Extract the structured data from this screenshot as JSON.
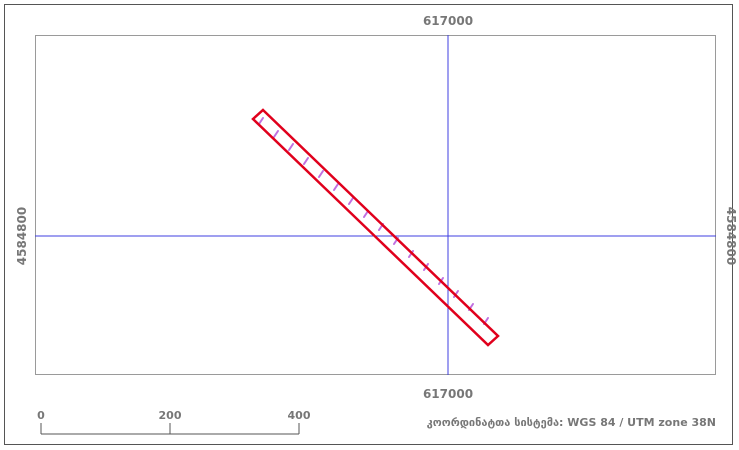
{
  "map": {
    "grid_easting_label": "617000",
    "grid_northing_label": "4584800",
    "grid_color": "#3f3fe0",
    "feature_outline_color": "#e0001c",
    "feature_hatch_color": "#c070e0"
  },
  "scalebar": {
    "ticks": [
      "0",
      "200",
      "400"
    ]
  },
  "crs_label": "კოორდინატთა სისტემა: WGS 84 / UTM zone 38N"
}
